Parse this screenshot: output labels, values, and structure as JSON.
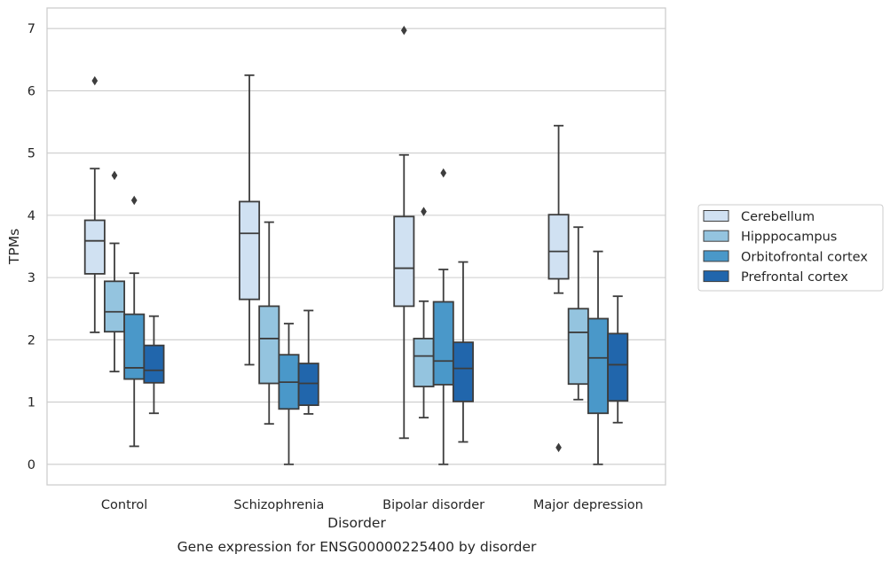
{
  "chart_data": {
    "type": "box",
    "caption": "Gene expression for ENSG00000225400 by disorder",
    "xlabel": "Disorder",
    "ylabel": "TPMs",
    "ylim": [
      -0.33,
      7.33
    ],
    "yticks": [
      0,
      1,
      2,
      3,
      4,
      5,
      6,
      7
    ],
    "grid": "horizontal",
    "legend_position": "right",
    "categories": [
      "Control",
      "Schizophrenia",
      "Bipolar disorder",
      "Major depression"
    ],
    "series": [
      {
        "name": "Cerebellum",
        "color": "#d0e1f2",
        "boxes": [
          {
            "whisker_low": 2.12,
            "q1": 3.06,
            "median": 3.59,
            "q3": 3.92,
            "whisker_high": 4.75,
            "outliers": [
              6.16
            ]
          },
          {
            "whisker_low": 1.6,
            "q1": 2.65,
            "median": 3.71,
            "q3": 4.22,
            "whisker_high": 6.25,
            "outliers": []
          },
          {
            "whisker_low": 0.42,
            "q1": 2.54,
            "median": 3.15,
            "q3": 3.98,
            "whisker_high": 4.97,
            "outliers": [
              6.97
            ]
          },
          {
            "whisker_low": 2.75,
            "q1": 2.98,
            "median": 3.42,
            "q3": 4.01,
            "whisker_high": 5.44,
            "outliers": [
              0.27
            ]
          }
        ]
      },
      {
        "name": "Hipppocampus",
        "color": "#94c4df",
        "boxes": [
          {
            "whisker_low": 1.49,
            "q1": 2.13,
            "median": 2.45,
            "q3": 2.94,
            "whisker_high": 3.55,
            "outliers": [
              4.64
            ]
          },
          {
            "whisker_low": 0.65,
            "q1": 1.3,
            "median": 2.02,
            "q3": 2.54,
            "whisker_high": 3.89,
            "outliers": []
          },
          {
            "whisker_low": 0.75,
            "q1": 1.25,
            "median": 1.74,
            "q3": 2.02,
            "whisker_high": 2.62,
            "outliers": [
              4.06
            ]
          },
          {
            "whisker_low": 1.04,
            "q1": 1.29,
            "median": 2.12,
            "q3": 2.5,
            "whisker_high": 3.81,
            "outliers": []
          }
        ]
      },
      {
        "name": "Orbitofrontal cortex",
        "color": "#4a98c9",
        "boxes": [
          {
            "whisker_low": 0.29,
            "q1": 1.37,
            "median": 1.55,
            "q3": 2.41,
            "whisker_high": 3.07,
            "outliers": [
              4.24
            ]
          },
          {
            "whisker_low": 0.0,
            "q1": 0.89,
            "median": 1.32,
            "q3": 1.76,
            "whisker_high": 2.26,
            "outliers": []
          },
          {
            "whisker_low": 0.0,
            "q1": 1.28,
            "median": 1.66,
            "q3": 2.61,
            "whisker_high": 3.13,
            "outliers": [
              4.68
            ]
          },
          {
            "whisker_low": 0.0,
            "q1": 0.82,
            "median": 1.71,
            "q3": 2.34,
            "whisker_high": 3.42,
            "outliers": []
          }
        ]
      },
      {
        "name": "Prefrontal cortex",
        "color": "#2166ac",
        "boxes": [
          {
            "whisker_low": 0.82,
            "q1": 1.31,
            "median": 1.51,
            "q3": 1.91,
            "whisker_high": 2.38,
            "outliers": []
          },
          {
            "whisker_low": 0.81,
            "q1": 0.95,
            "median": 1.3,
            "q3": 1.62,
            "whisker_high": 2.47,
            "outliers": []
          },
          {
            "whisker_low": 0.36,
            "q1": 1.01,
            "median": 1.54,
            "q3": 1.96,
            "whisker_high": 3.25,
            "outliers": []
          },
          {
            "whisker_low": 0.67,
            "q1": 1.02,
            "median": 1.6,
            "q3": 2.1,
            "whisker_high": 2.7,
            "outliers": []
          }
        ]
      }
    ]
  }
}
